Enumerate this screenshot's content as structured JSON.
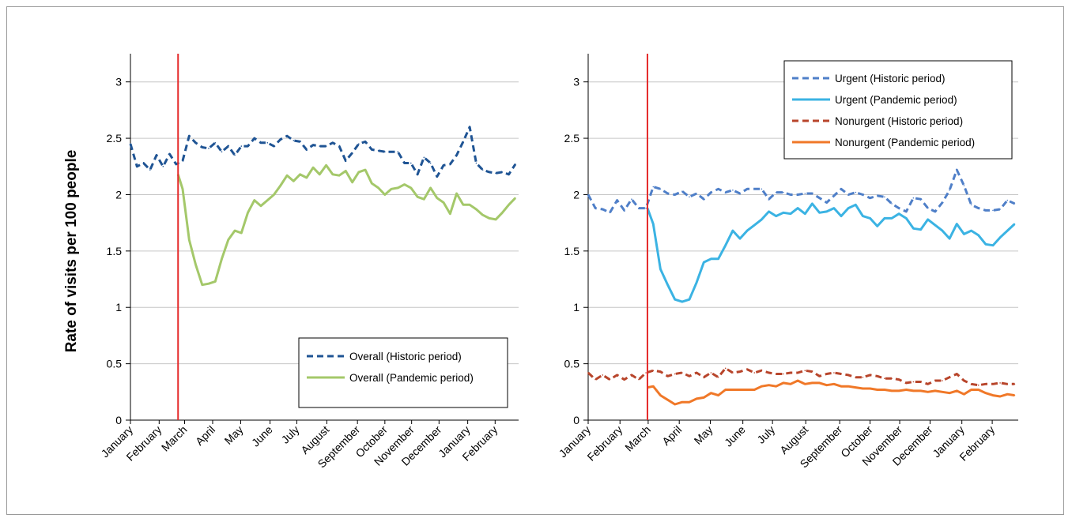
{
  "y_axis_label": "Rate of visits per 100 people",
  "chart_data": [
    {
      "type": "line",
      "ylabel": "Rate of visits per 100 people",
      "ylim": [
        0,
        3.25
      ],
      "yticks": [
        "0",
        "0.5",
        "1",
        "1.5",
        "2",
        "2.5",
        "3"
      ],
      "ytick_values": [
        0,
        0.5,
        1,
        1.5,
        2,
        2.5,
        3
      ],
      "xlim": [
        0,
        59.5
      ],
      "categories": [
        "January",
        "February",
        "March",
        "April",
        "May",
        "June",
        "July",
        "August",
        "September",
        "October",
        "November",
        "December",
        "January",
        "February"
      ],
      "category_positions": [
        0,
        4.4,
        8.3,
        12.6,
        16.9,
        21.4,
        25.5,
        30.1,
        34.8,
        39,
        43.1,
        47.3,
        51.7,
        55.9
      ],
      "marker_line_x": 7.3,
      "marker_line_color": "#e52a2a",
      "grid": true,
      "legend": "bottom-right",
      "series": [
        {
          "name": "Overall (Historic period)",
          "style": "dashed",
          "color": "#1f5494",
          "x": [
            0,
            1,
            2,
            3,
            4,
            5,
            6,
            7,
            8,
            9,
            10,
            11,
            12,
            13,
            14,
            15,
            16,
            17,
            18,
            19,
            20,
            21,
            22,
            23,
            24,
            25,
            26,
            27,
            28,
            29,
            30,
            31,
            32,
            33,
            34,
            35,
            36,
            37,
            38,
            39,
            40,
            41,
            42,
            43,
            44,
            45,
            46,
            47,
            48,
            49,
            50,
            51,
            52,
            53,
            54,
            55,
            56,
            57,
            58,
            59
          ],
          "values": [
            2.45,
            2.25,
            2.28,
            2.22,
            2.35,
            2.25,
            2.36,
            2.27,
            2.3,
            2.52,
            2.46,
            2.42,
            2.41,
            2.46,
            2.38,
            2.43,
            2.35,
            2.43,
            2.43,
            2.5,
            2.46,
            2.46,
            2.43,
            2.49,
            2.52,
            2.48,
            2.47,
            2.4,
            2.44,
            2.43,
            2.43,
            2.46,
            2.43,
            2.3,
            2.37,
            2.45,
            2.47,
            2.4,
            2.39,
            2.38,
            2.38,
            2.38,
            2.28,
            2.28,
            2.18,
            2.33,
            2.28,
            2.16,
            2.26,
            2.27,
            2.35,
            2.47,
            2.6,
            2.28,
            2.22,
            2.2,
            2.19,
            2.2,
            2.18,
            2.27
          ]
        },
        {
          "name": "Overall (Pandemic period)",
          "style": "solid",
          "color": "#a4c86a",
          "x": [
            7.3,
            8,
            9,
            10,
            11,
            12,
            13,
            14,
            15,
            16,
            17,
            18,
            19,
            20,
            21,
            22,
            23,
            24,
            25,
            26,
            27,
            28,
            29,
            30,
            31,
            32,
            33,
            34,
            35,
            36,
            37,
            38,
            39,
            40,
            41,
            42,
            43,
            44,
            45,
            46,
            47,
            48,
            49,
            50,
            51,
            52,
            53,
            54,
            55,
            56,
            57,
            58,
            59
          ],
          "values": [
            2.18,
            2.05,
            1.6,
            1.38,
            1.2,
            1.21,
            1.23,
            1.43,
            1.6,
            1.68,
            1.66,
            1.84,
            1.95,
            1.9,
            1.95,
            2.0,
            2.08,
            2.17,
            2.12,
            2.18,
            2.15,
            2.24,
            2.18,
            2.26,
            2.18,
            2.17,
            2.21,
            2.11,
            2.2,
            2.22,
            2.1,
            2.06,
            2.0,
            2.05,
            2.06,
            2.09,
            2.06,
            1.98,
            1.96,
            2.06,
            1.97,
            1.93,
            1.83,
            2.01,
            1.91,
            1.91,
            1.87,
            1.82,
            1.79,
            1.78,
            1.84,
            1.91,
            1.97
          ]
        }
      ]
    },
    {
      "type": "line",
      "ylim": [
        0,
        3.25
      ],
      "yticks": [
        "0",
        "0.5",
        "1",
        "1.5",
        "2",
        "2.5",
        "3"
      ],
      "ytick_values": [
        0,
        0.5,
        1,
        1.5,
        2,
        2.5,
        3
      ],
      "xlim": [
        0,
        59.5
      ],
      "categories": [
        "January",
        "February",
        "March",
        "April",
        "May",
        "June",
        "July",
        "August",
        "September",
        "October",
        "November",
        "December",
        "January",
        "February"
      ],
      "category_positions": [
        0,
        4.4,
        8.3,
        12.6,
        16.9,
        21.4,
        25.5,
        30.1,
        34.8,
        39,
        43.1,
        47.3,
        51.7,
        55.9
      ],
      "marker_line_x": 8.2,
      "marker_line_color": "#e52a2a",
      "grid": true,
      "legend": "top-right",
      "series": [
        {
          "name": "Urgent (Historic period)",
          "style": "dashed",
          "color": "#4f7fc8",
          "x": [
            0,
            1,
            2,
            3,
            4,
            5,
            6,
            7,
            8,
            9,
            10,
            11,
            12,
            13,
            14,
            15,
            16,
            17,
            18,
            19,
            20,
            21,
            22,
            23,
            24,
            25,
            26,
            27,
            28,
            29,
            30,
            31,
            32,
            33,
            34,
            35,
            36,
            37,
            38,
            39,
            40,
            41,
            42,
            43,
            44,
            45,
            46,
            47,
            48,
            49,
            50,
            51,
            52,
            53,
            54,
            55,
            56,
            57,
            58,
            59
          ],
          "values": [
            2.0,
            1.88,
            1.87,
            1.84,
            1.95,
            1.86,
            1.96,
            1.88,
            1.88,
            2.07,
            2.05,
            2.01,
            2.0,
            2.03,
            1.98,
            2.01,
            1.96,
            2.02,
            2.05,
            2.02,
            2.04,
            2.01,
            2.05,
            2.05,
            2.05,
            1.96,
            2.02,
            2.02,
            2.0,
            2.0,
            2.01,
            2.01,
            1.97,
            1.93,
            1.99,
            2.05,
            2.0,
            2.02,
            2.0,
            1.97,
            1.99,
            1.98,
            1.92,
            1.88,
            1.85,
            1.97,
            1.96,
            1.88,
            1.85,
            1.93,
            2.04,
            2.22,
            2.08,
            1.91,
            1.88,
            1.86,
            1.86,
            1.87,
            1.95,
            1.92
          ]
        },
        {
          "name": "Urgent (Pandemic period)",
          "style": "solid",
          "color": "#3bb3e3",
          "x": [
            8.2,
            9,
            10,
            11,
            12,
            13,
            14,
            15,
            16,
            17,
            18,
            19,
            20,
            21,
            22,
            23,
            24,
            25,
            26,
            27,
            28,
            29,
            30,
            31,
            32,
            33,
            34,
            35,
            36,
            37,
            38,
            39,
            40,
            41,
            42,
            43,
            44,
            45,
            46,
            47,
            48,
            49,
            50,
            51,
            52,
            53,
            54,
            55,
            56,
            57,
            58,
            59
          ],
          "values": [
            1.88,
            1.74,
            1.34,
            1.2,
            1.07,
            1.05,
            1.07,
            1.22,
            1.4,
            1.43,
            1.43,
            1.55,
            1.68,
            1.61,
            1.68,
            1.73,
            1.78,
            1.85,
            1.81,
            1.84,
            1.83,
            1.88,
            1.83,
            1.92,
            1.84,
            1.85,
            1.88,
            1.81,
            1.88,
            1.91,
            1.81,
            1.79,
            1.72,
            1.79,
            1.79,
            1.83,
            1.79,
            1.7,
            1.69,
            1.78,
            1.73,
            1.68,
            1.61,
            1.74,
            1.65,
            1.68,
            1.64,
            1.56,
            1.55,
            1.62,
            1.68,
            1.74
          ]
        },
        {
          "name": "Nonurgent (Historic period)",
          "style": "dashed",
          "color": "#b8452b",
          "x": [
            0,
            1,
            2,
            3,
            4,
            5,
            6,
            7,
            8,
            9,
            10,
            11,
            12,
            13,
            14,
            15,
            16,
            17,
            18,
            19,
            20,
            21,
            22,
            23,
            24,
            25,
            26,
            27,
            28,
            29,
            30,
            31,
            32,
            33,
            34,
            35,
            36,
            37,
            38,
            39,
            40,
            41,
            42,
            43,
            44,
            45,
            46,
            47,
            48,
            49,
            50,
            51,
            52,
            53,
            54,
            55,
            56,
            57,
            58,
            59
          ],
          "values": [
            0.42,
            0.36,
            0.4,
            0.36,
            0.4,
            0.36,
            0.4,
            0.36,
            0.42,
            0.44,
            0.43,
            0.39,
            0.41,
            0.42,
            0.39,
            0.42,
            0.38,
            0.42,
            0.38,
            0.46,
            0.42,
            0.43,
            0.45,
            0.42,
            0.44,
            0.42,
            0.41,
            0.41,
            0.42,
            0.42,
            0.44,
            0.43,
            0.39,
            0.41,
            0.42,
            0.41,
            0.4,
            0.38,
            0.38,
            0.4,
            0.39,
            0.37,
            0.37,
            0.36,
            0.33,
            0.34,
            0.34,
            0.32,
            0.35,
            0.35,
            0.38,
            0.41,
            0.35,
            0.32,
            0.31,
            0.32,
            0.32,
            0.33,
            0.32,
            0.32
          ]
        },
        {
          "name": "Nonurgent (Pandemic period)",
          "style": "solid",
          "color": "#f07828",
          "x": [
            8.2,
            9,
            10,
            11,
            12,
            13,
            14,
            15,
            16,
            17,
            18,
            19,
            20,
            21,
            22,
            23,
            24,
            25,
            26,
            27,
            28,
            29,
            30,
            31,
            32,
            33,
            34,
            35,
            36,
            37,
            38,
            39,
            40,
            41,
            42,
            43,
            44,
            45,
            46,
            47,
            48,
            49,
            50,
            51,
            52,
            53,
            54,
            55,
            56,
            57,
            58,
            59
          ],
          "values": [
            0.29,
            0.3,
            0.22,
            0.18,
            0.14,
            0.16,
            0.16,
            0.19,
            0.2,
            0.24,
            0.22,
            0.27,
            0.27,
            0.27,
            0.27,
            0.27,
            0.3,
            0.31,
            0.3,
            0.33,
            0.32,
            0.35,
            0.32,
            0.33,
            0.33,
            0.31,
            0.32,
            0.3,
            0.3,
            0.29,
            0.28,
            0.28,
            0.27,
            0.27,
            0.26,
            0.26,
            0.27,
            0.26,
            0.26,
            0.25,
            0.26,
            0.25,
            0.24,
            0.26,
            0.23,
            0.27,
            0.27,
            0.24,
            0.22,
            0.21,
            0.23,
            0.22
          ]
        }
      ]
    }
  ]
}
